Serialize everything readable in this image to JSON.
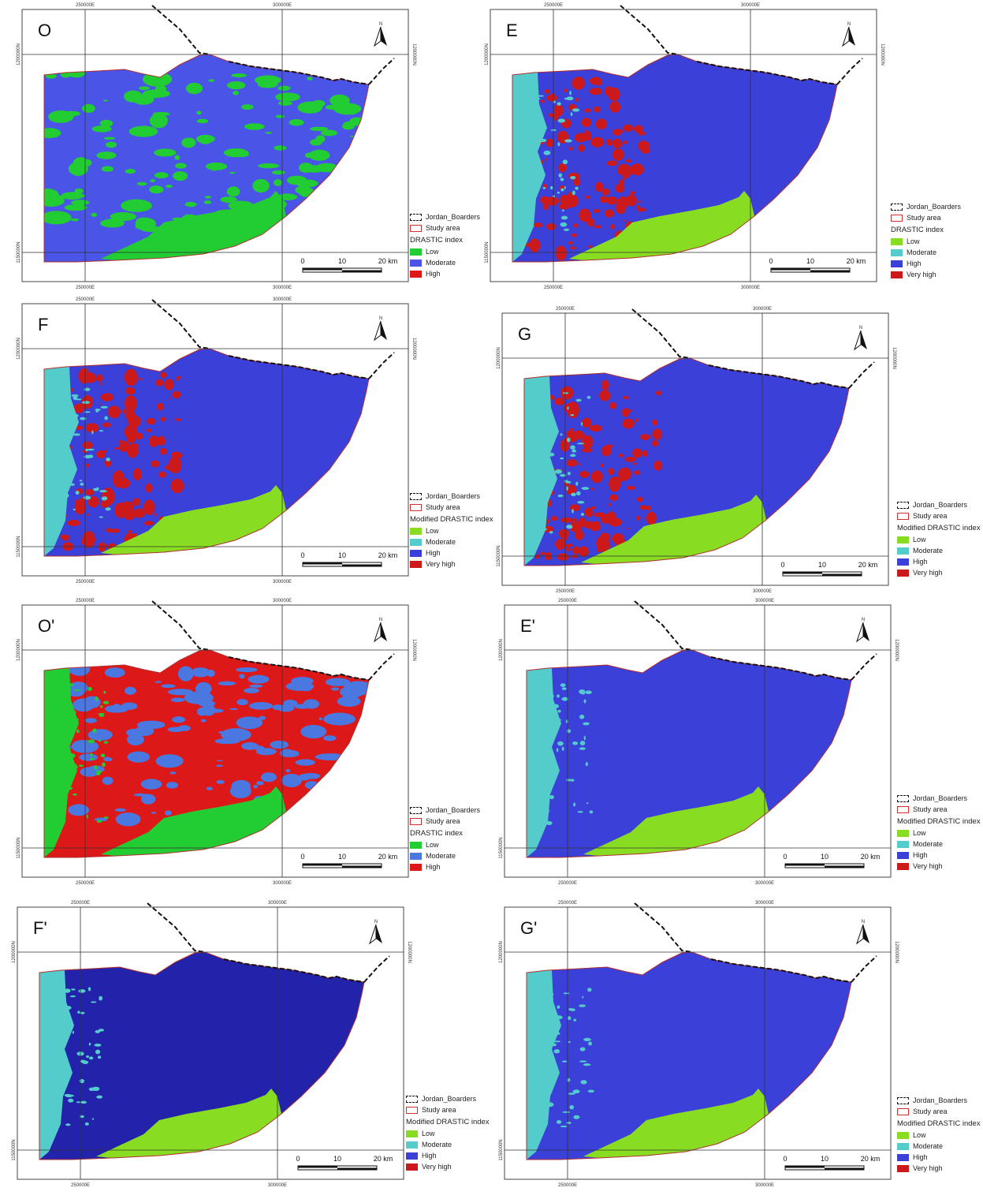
{
  "grid_labels": {
    "e_left": "250000E",
    "e_right": "300000E",
    "n_top": "1200000N",
    "n_bottom": "1150000N"
  },
  "north_label": "N",
  "scale": {
    "l0": "0",
    "l10": "10",
    "l20": "20 km"
  },
  "legend_common": {
    "borders": "Jordan_Boarders",
    "study": "Study area"
  },
  "colors": {
    "low_green": "#22cc33",
    "low_lime": "#88dd22",
    "moderate_cyan": "#55cccc",
    "moderate_blue": "#4a55e8",
    "moderate_lightblue": "#4a78e0",
    "high_blue": "#3a40d8",
    "high_red": "#dd1818",
    "very_high_red": "#cc1a1a",
    "deep_blue": "#2222aa"
  },
  "panels": [
    {
      "id": "O",
      "letter": "O",
      "legend_title": "DRASTIC index",
      "legend": [
        {
          "label": "Low",
          "color": "#22cc33"
        },
        {
          "label": "Moderate",
          "color": "#4a55e8"
        },
        {
          "label": "High",
          "color": "#dd1818"
        }
      ],
      "base": "#4a55e8",
      "strip": "",
      "speckle": "#22cc33",
      "red": ""
    },
    {
      "id": "E",
      "letter": "E",
      "legend_title": "DRASTIC index",
      "legend": [
        {
          "label": "Low",
          "color": "#88dd22"
        },
        {
          "label": "Moderate",
          "color": "#55cccc"
        },
        {
          "label": "High",
          "color": "#3a40d8"
        },
        {
          "label": "Very high",
          "color": "#cc1a1a"
        }
      ],
      "base": "#3a40d8",
      "strip": "#55cccc",
      "speckle": "",
      "red": "#cc1a1a"
    },
    {
      "id": "F",
      "letter": "F",
      "legend_title": "Modified DRASTIC index",
      "legend": [
        {
          "label": "Low",
          "color": "#88dd22"
        },
        {
          "label": "Moderate",
          "color": "#55cccc"
        },
        {
          "label": "High",
          "color": "#3a40d8"
        },
        {
          "label": "Very high",
          "color": "#cc1a1a"
        }
      ],
      "base": "#3a40d8",
      "strip": "#55cccc",
      "speckle": "",
      "red": "#cc1a1a"
    },
    {
      "id": "G",
      "letter": "G",
      "legend_title": "Modified DRASTIC index",
      "legend": [
        {
          "label": "Low",
          "color": "#88dd22"
        },
        {
          "label": "Moderate",
          "color": "#55cccc"
        },
        {
          "label": "High",
          "color": "#3a40d8"
        },
        {
          "label": "Very high",
          "color": "#cc1a1a"
        }
      ],
      "base": "#3a40d8",
      "strip": "#55cccc",
      "speckle": "",
      "red": "#cc1a1a"
    },
    {
      "id": "O2",
      "letter": "O'",
      "legend_title": "DRASTIC index",
      "legend": [
        {
          "label": "Low",
          "color": "#22cc33"
        },
        {
          "label": "Moderate",
          "color": "#4a78e0"
        },
        {
          "label": "High",
          "color": "#dd1818"
        }
      ],
      "base": "#dd1818",
      "strip": "#22cc33",
      "speckle": "#4a78e0",
      "red": ""
    },
    {
      "id": "E2",
      "letter": "E'",
      "legend_title": "Modified DRASTIC index",
      "legend": [
        {
          "label": "Low",
          "color": "#88dd22"
        },
        {
          "label": "Moderate",
          "color": "#55cccc"
        },
        {
          "label": "High",
          "color": "#3a40d8"
        },
        {
          "label": "Very high",
          "color": "#cc1a1a"
        }
      ],
      "base": "#3a40d8",
      "strip": "#55cccc",
      "speckle": "",
      "red": ""
    },
    {
      "id": "F2",
      "letter": "F'",
      "legend_title": "Modified DRASTIC index",
      "legend": [
        {
          "label": "Low",
          "color": "#88dd22"
        },
        {
          "label": "Moderate",
          "color": "#55cccc"
        },
        {
          "label": "High",
          "color": "#3a40d8"
        },
        {
          "label": "Very high",
          "color": "#cc1a1a"
        }
      ],
      "base": "#2222aa",
      "strip": "#55cccc",
      "speckle": "",
      "red": ""
    },
    {
      "id": "G2",
      "letter": "G'",
      "legend_title": "Modified DRASTIC index",
      "legend": [
        {
          "label": "Low",
          "color": "#88dd22"
        },
        {
          "label": "Moderate",
          "color": "#55cccc"
        },
        {
          "label": "High",
          "color": "#3a40d8"
        },
        {
          "label": "Very high",
          "color": "#cc1a1a"
        }
      ],
      "base": "#3a40d8",
      "strip": "#55cccc",
      "speckle": "",
      "red": ""
    }
  ]
}
